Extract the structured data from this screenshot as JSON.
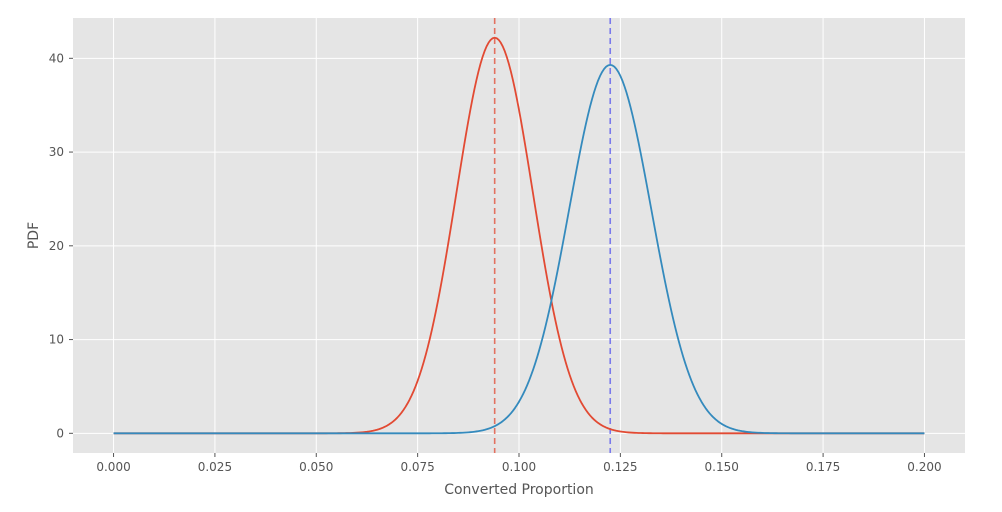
{
  "chart_data": {
    "type": "line",
    "title": "",
    "xlabel": "Converted Proportion",
    "ylabel": "PDF",
    "xlim": [
      -0.01,
      0.21
    ],
    "ylim": [
      -2.1,
      44.3
    ],
    "grid": true,
    "x_ticks": [
      0.0,
      0.025,
      0.05,
      0.075,
      0.1,
      0.125,
      0.15,
      0.175,
      0.2
    ],
    "x_tick_labels": [
      "0.000",
      "0.025",
      "0.050",
      "0.075",
      "0.100",
      "0.125",
      "0.150",
      "0.175",
      "0.200"
    ],
    "y_ticks": [
      0,
      10,
      20,
      30,
      40
    ],
    "y_tick_labels": [
      "0",
      "10",
      "20",
      "30",
      "40"
    ],
    "x_range": [
      0.0,
      0.2
    ],
    "series": [
      {
        "color": "#E24A33",
        "distribution": "approximately normal",
        "peak_x": 0.094,
        "peak_y": 42.2
      },
      {
        "color": "#348ABD",
        "distribution": "approximately normal",
        "peak_x": 0.1225,
        "peak_y": 39.3
      }
    ],
    "vertical_lines": [
      {
        "x": 0.094,
        "color": "#E24A33",
        "style": "dashed"
      },
      {
        "x": 0.1225,
        "color": "#5555EE",
        "style": "dashed"
      }
    ],
    "colors": {
      "plot_background": "#E5E5E5",
      "grid": "#FFFFFF",
      "text": "#555555"
    }
  }
}
